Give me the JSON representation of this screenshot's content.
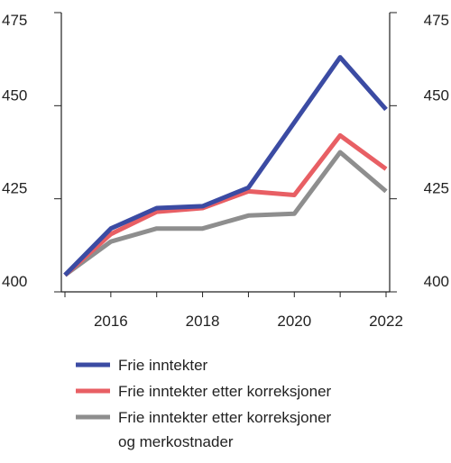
{
  "chart_data": {
    "type": "line",
    "x": [
      2015,
      2016,
      2017,
      2018,
      2019,
      2020,
      2021,
      2022
    ],
    "xticks": [
      "2016",
      "2018",
      "2020",
      "2022"
    ],
    "xtick_values": [
      2016,
      2018,
      2020,
      2022
    ],
    "yticks": [
      "400",
      "425",
      "450",
      "475"
    ],
    "ytick_values": [
      400,
      425,
      450,
      475
    ],
    "xlim": [
      2015,
      2022
    ],
    "ylim": [
      400,
      475
    ],
    "grid": false,
    "legend_position": "bottom",
    "series": [
      {
        "name": "Frie inntekter",
        "color": "#3b4ba3",
        "values": [
          404.5,
          417,
          422.5,
          423,
          428,
          445.5,
          463,
          449
        ]
      },
      {
        "name": "Frie inntekter etter korreksjoner",
        "color": "#e85f64",
        "values": [
          404.5,
          415.5,
          421.5,
          422.5,
          427,
          426,
          442,
          433
        ]
      },
      {
        "name": "Frie inntekter etter korreksjoner og merkostnader",
        "name_lines": [
          "Frie inntekter etter korreksjoner",
          "og merkostnader"
        ],
        "color": "#8e8e8e",
        "values": [
          404.5,
          413.5,
          417,
          417,
          420.5,
          421,
          437.5,
          427
        ]
      }
    ]
  }
}
